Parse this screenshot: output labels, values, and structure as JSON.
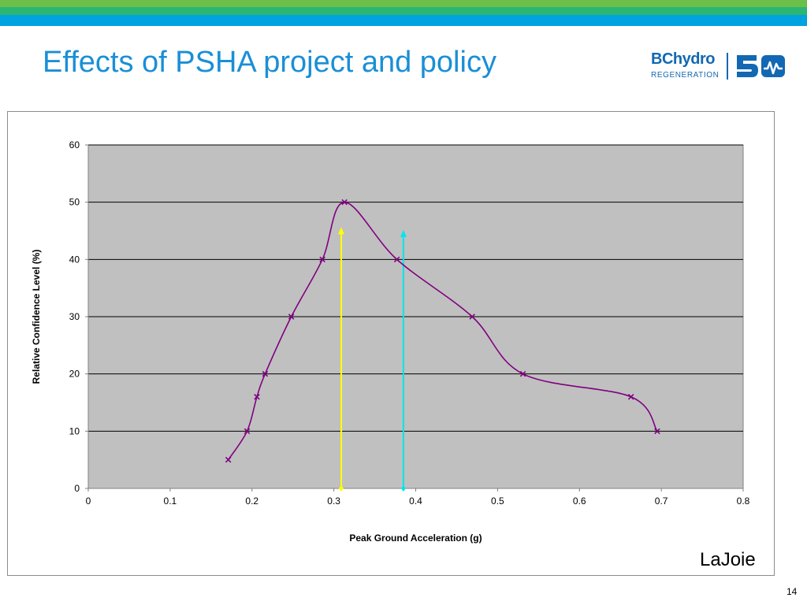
{
  "slide": {
    "title": "Effects of PSHA project and policy",
    "attribution": "LaJoie",
    "page_number": "14"
  },
  "logo": {
    "brand_text": "BChydro",
    "tagline": "REGENERATION",
    "anniversary_icon": "fifty-anniversary-icon",
    "color": "#1268b3"
  },
  "header_colors": [
    "#6cc04a",
    "#2bb673",
    "#00a3e0"
  ],
  "chart_data": {
    "type": "line",
    "xlabel": "Peak Ground Acceleration (g)",
    "ylabel": "Relative Confidence Level (%)",
    "xlim": [
      0,
      0.8
    ],
    "ylim": [
      0,
      60
    ],
    "xticks": [
      "0",
      "0.1",
      "0.2",
      "0.3",
      "0.4",
      "0.5",
      "0.6",
      "0.7",
      "0.8"
    ],
    "yticks": [
      "0",
      "10",
      "20",
      "30",
      "40",
      "50",
      "60"
    ],
    "xtick_values": [
      0,
      0.1,
      0.2,
      0.3,
      0.4,
      0.5,
      0.6,
      0.7,
      0.8
    ],
    "ytick_values": [
      0,
      10,
      20,
      30,
      40,
      50,
      60
    ],
    "grid": "horizontal",
    "plot_background": "#c0c0c0",
    "series": [
      {
        "color": "#800080",
        "marker": "x",
        "smooth": true,
        "x": [
          0.171,
          0.194,
          0.206,
          0.216,
          0.248,
          0.286,
          0.313,
          0.377,
          0.469,
          0.531,
          0.663,
          0.695
        ],
        "y": [
          5,
          10,
          16,
          20,
          30,
          40,
          50,
          40,
          30,
          20,
          16,
          10
        ]
      }
    ],
    "arrows": [
      {
        "color": "#ffff00",
        "x": 0.309,
        "y_from": 0,
        "y_to": 45.5
      },
      {
        "color": "#00e5ee",
        "x": 0.385,
        "y_from": 0,
        "y_to": 45
      }
    ]
  }
}
